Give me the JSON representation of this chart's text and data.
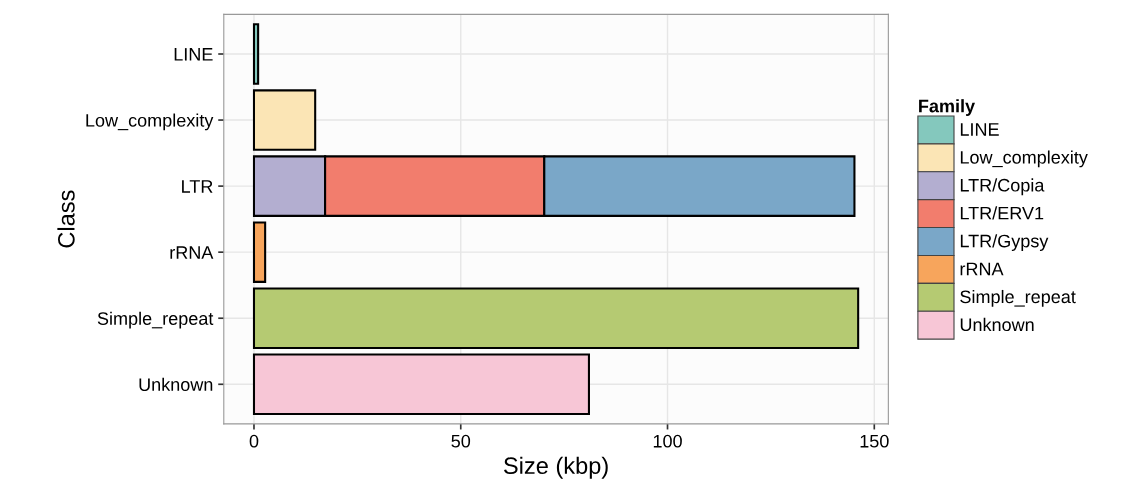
{
  "chart_data": {
    "type": "bar",
    "orientation": "horizontal",
    "stacked": true,
    "categories": [
      "LINE",
      "Low_complexity",
      "LTR",
      "rRNA",
      "Simple_repeat",
      "Unknown"
    ],
    "xlabel": "Size (kbp)",
    "ylabel": "Class",
    "legend_title": "Family",
    "legend": "right",
    "xlim": [
      -7.3,
      153.4
    ],
    "xticks": [
      0,
      50,
      100,
      150
    ],
    "grid": true,
    "series": [
      {
        "name": "LINE",
        "color": "#84c8bd",
        "values": [
          1.0,
          null,
          null,
          null,
          null,
          null
        ]
      },
      {
        "name": "Low_complexity",
        "color": "#fbe5b5",
        "values": [
          null,
          14.8,
          null,
          null,
          null,
          null
        ]
      },
      {
        "name": "LTR/Copia",
        "color": "#b3aed0",
        "values": [
          null,
          null,
          17.2,
          null,
          null,
          null
        ]
      },
      {
        "name": "LTR/ERV1",
        "color": "#f27d6d",
        "values": [
          null,
          null,
          53.0,
          null,
          null,
          null
        ]
      },
      {
        "name": "LTR/Gypsy",
        "color": "#7aa7c8",
        "values": [
          null,
          null,
          75.0,
          null,
          null,
          null
        ]
      },
      {
        "name": "rRNA",
        "color": "#f7a55c",
        "values": [
          null,
          null,
          null,
          2.7,
          null,
          null
        ]
      },
      {
        "name": "Simple_repeat",
        "color": "#b5ca72",
        "values": [
          null,
          null,
          null,
          null,
          146.1,
          null
        ]
      },
      {
        "name": "Unknown",
        "color": "#f7c6d6",
        "values": [
          null,
          null,
          null,
          null,
          null,
          81.0
        ]
      }
    ]
  }
}
